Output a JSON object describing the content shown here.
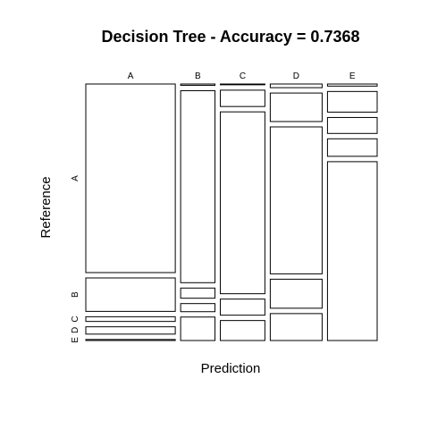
{
  "chart_data": {
    "type": "mosaic",
    "title": "Decision Tree - Accuracy = 0.7368",
    "xlabel": "Prediction",
    "ylabel": "Reference",
    "prediction_classes": [
      "A",
      "B",
      "C",
      "D",
      "E"
    ],
    "reference_classes": [
      "A",
      "B",
      "C",
      "D",
      "E"
    ],
    "column_widths": [
      0.245,
      0.094,
      0.122,
      0.142,
      0.136
    ],
    "conditional_proportions": [
      [
        0.722,
        0.128,
        0.018,
        0.028,
        0.004
      ],
      [
        0.005,
        0.736,
        0.039,
        0.031,
        0.09
      ],
      [
        0.003,
        0.063,
        0.701,
        0.062,
        0.077
      ],
      [
        0.014,
        0.109,
        0.562,
        0.111,
        0.103
      ],
      [
        0.008,
        0.079,
        0.061,
        0.067,
        0.684
      ]
    ],
    "grid": false,
    "legend": "none"
  }
}
